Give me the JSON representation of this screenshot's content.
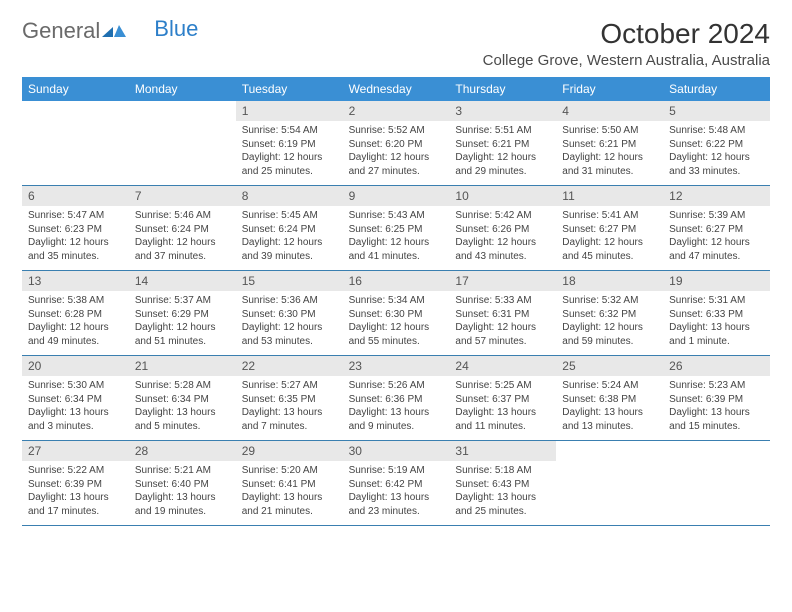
{
  "logo": {
    "word1": "General",
    "word2": "Blue"
  },
  "header": {
    "title": "October 2024",
    "location": "College Grove, Western Australia, Australia"
  },
  "colors": {
    "brand_blue": "#3a8fd4",
    "accent_blue": "#2d7fc9",
    "header_bg": "#e8e8e8",
    "text_dark": "#333333",
    "text_body": "#444444",
    "week_rule": "#3a7fb0"
  },
  "calendar": {
    "weekdays": [
      "Sunday",
      "Monday",
      "Tuesday",
      "Wednesday",
      "Thursday",
      "Friday",
      "Saturday"
    ],
    "weeks": [
      [
        null,
        null,
        {
          "d": "1",
          "sunrise": "Sunrise: 5:54 AM",
          "sunset": "Sunset: 6:19 PM",
          "daylight": "Daylight: 12 hours and 25 minutes."
        },
        {
          "d": "2",
          "sunrise": "Sunrise: 5:52 AM",
          "sunset": "Sunset: 6:20 PM",
          "daylight": "Daylight: 12 hours and 27 minutes."
        },
        {
          "d": "3",
          "sunrise": "Sunrise: 5:51 AM",
          "sunset": "Sunset: 6:21 PM",
          "daylight": "Daylight: 12 hours and 29 minutes."
        },
        {
          "d": "4",
          "sunrise": "Sunrise: 5:50 AM",
          "sunset": "Sunset: 6:21 PM",
          "daylight": "Daylight: 12 hours and 31 minutes."
        },
        {
          "d": "5",
          "sunrise": "Sunrise: 5:48 AM",
          "sunset": "Sunset: 6:22 PM",
          "daylight": "Daylight: 12 hours and 33 minutes."
        }
      ],
      [
        {
          "d": "6",
          "sunrise": "Sunrise: 5:47 AM",
          "sunset": "Sunset: 6:23 PM",
          "daylight": "Daylight: 12 hours and 35 minutes."
        },
        {
          "d": "7",
          "sunrise": "Sunrise: 5:46 AM",
          "sunset": "Sunset: 6:24 PM",
          "daylight": "Daylight: 12 hours and 37 minutes."
        },
        {
          "d": "8",
          "sunrise": "Sunrise: 5:45 AM",
          "sunset": "Sunset: 6:24 PM",
          "daylight": "Daylight: 12 hours and 39 minutes."
        },
        {
          "d": "9",
          "sunrise": "Sunrise: 5:43 AM",
          "sunset": "Sunset: 6:25 PM",
          "daylight": "Daylight: 12 hours and 41 minutes."
        },
        {
          "d": "10",
          "sunrise": "Sunrise: 5:42 AM",
          "sunset": "Sunset: 6:26 PM",
          "daylight": "Daylight: 12 hours and 43 minutes."
        },
        {
          "d": "11",
          "sunrise": "Sunrise: 5:41 AM",
          "sunset": "Sunset: 6:27 PM",
          "daylight": "Daylight: 12 hours and 45 minutes."
        },
        {
          "d": "12",
          "sunrise": "Sunrise: 5:39 AM",
          "sunset": "Sunset: 6:27 PM",
          "daylight": "Daylight: 12 hours and 47 minutes."
        }
      ],
      [
        {
          "d": "13",
          "sunrise": "Sunrise: 5:38 AM",
          "sunset": "Sunset: 6:28 PM",
          "daylight": "Daylight: 12 hours and 49 minutes."
        },
        {
          "d": "14",
          "sunrise": "Sunrise: 5:37 AM",
          "sunset": "Sunset: 6:29 PM",
          "daylight": "Daylight: 12 hours and 51 minutes."
        },
        {
          "d": "15",
          "sunrise": "Sunrise: 5:36 AM",
          "sunset": "Sunset: 6:30 PM",
          "daylight": "Daylight: 12 hours and 53 minutes."
        },
        {
          "d": "16",
          "sunrise": "Sunrise: 5:34 AM",
          "sunset": "Sunset: 6:30 PM",
          "daylight": "Daylight: 12 hours and 55 minutes."
        },
        {
          "d": "17",
          "sunrise": "Sunrise: 5:33 AM",
          "sunset": "Sunset: 6:31 PM",
          "daylight": "Daylight: 12 hours and 57 minutes."
        },
        {
          "d": "18",
          "sunrise": "Sunrise: 5:32 AM",
          "sunset": "Sunset: 6:32 PM",
          "daylight": "Daylight: 12 hours and 59 minutes."
        },
        {
          "d": "19",
          "sunrise": "Sunrise: 5:31 AM",
          "sunset": "Sunset: 6:33 PM",
          "daylight": "Daylight: 13 hours and 1 minute."
        }
      ],
      [
        {
          "d": "20",
          "sunrise": "Sunrise: 5:30 AM",
          "sunset": "Sunset: 6:34 PM",
          "daylight": "Daylight: 13 hours and 3 minutes."
        },
        {
          "d": "21",
          "sunrise": "Sunrise: 5:28 AM",
          "sunset": "Sunset: 6:34 PM",
          "daylight": "Daylight: 13 hours and 5 minutes."
        },
        {
          "d": "22",
          "sunrise": "Sunrise: 5:27 AM",
          "sunset": "Sunset: 6:35 PM",
          "daylight": "Daylight: 13 hours and 7 minutes."
        },
        {
          "d": "23",
          "sunrise": "Sunrise: 5:26 AM",
          "sunset": "Sunset: 6:36 PM",
          "daylight": "Daylight: 13 hours and 9 minutes."
        },
        {
          "d": "24",
          "sunrise": "Sunrise: 5:25 AM",
          "sunset": "Sunset: 6:37 PM",
          "daylight": "Daylight: 13 hours and 11 minutes."
        },
        {
          "d": "25",
          "sunrise": "Sunrise: 5:24 AM",
          "sunset": "Sunset: 6:38 PM",
          "daylight": "Daylight: 13 hours and 13 minutes."
        },
        {
          "d": "26",
          "sunrise": "Sunrise: 5:23 AM",
          "sunset": "Sunset: 6:39 PM",
          "daylight": "Daylight: 13 hours and 15 minutes."
        }
      ],
      [
        {
          "d": "27",
          "sunrise": "Sunrise: 5:22 AM",
          "sunset": "Sunset: 6:39 PM",
          "daylight": "Daylight: 13 hours and 17 minutes."
        },
        {
          "d": "28",
          "sunrise": "Sunrise: 5:21 AM",
          "sunset": "Sunset: 6:40 PM",
          "daylight": "Daylight: 13 hours and 19 minutes."
        },
        {
          "d": "29",
          "sunrise": "Sunrise: 5:20 AM",
          "sunset": "Sunset: 6:41 PM",
          "daylight": "Daylight: 13 hours and 21 minutes."
        },
        {
          "d": "30",
          "sunrise": "Sunrise: 5:19 AM",
          "sunset": "Sunset: 6:42 PM",
          "daylight": "Daylight: 13 hours and 23 minutes."
        },
        {
          "d": "31",
          "sunrise": "Sunrise: 5:18 AM",
          "sunset": "Sunset: 6:43 PM",
          "daylight": "Daylight: 13 hours and 25 minutes."
        },
        null,
        null
      ]
    ]
  }
}
